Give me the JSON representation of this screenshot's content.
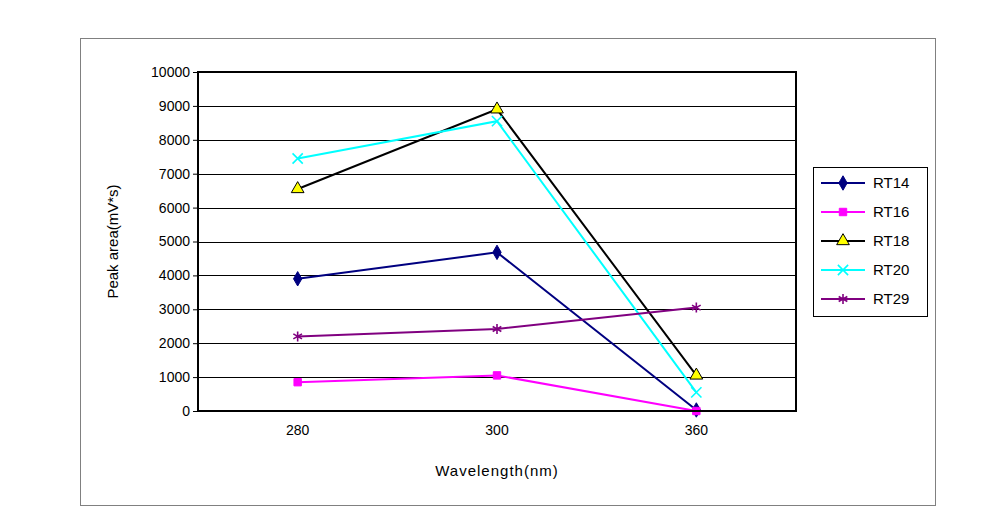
{
  "chart_data": {
    "type": "line",
    "x_label": "Wavelength(nm)",
    "y_label": "Peak area(mV*s)",
    "categories": [
      "280",
      "300",
      "360"
    ],
    "ylim": [
      0,
      10000
    ],
    "yticks": [
      0,
      1000,
      2000,
      3000,
      4000,
      5000,
      6000,
      7000,
      8000,
      9000,
      10000
    ],
    "grid": true,
    "legend": "right",
    "series": [
      {
        "name": "RT14",
        "color": "#000080",
        "marker": "diamond",
        "values": [
          3900,
          4680,
          30
        ]
      },
      {
        "name": "RT16",
        "color": "#ff00ff",
        "marker": "square",
        "values": [
          850,
          1050,
          0
        ]
      },
      {
        "name": "RT18",
        "color": "#000000",
        "marker": "triangle",
        "values": [
          6550,
          8900,
          1050
        ]
      },
      {
        "name": "RT20",
        "color": "#00ffff",
        "marker": "x",
        "values": [
          7450,
          8550,
          550
        ]
      },
      {
        "name": "RT29",
        "color": "#800080",
        "marker": "star",
        "values": [
          2200,
          2420,
          3050
        ]
      }
    ]
  }
}
